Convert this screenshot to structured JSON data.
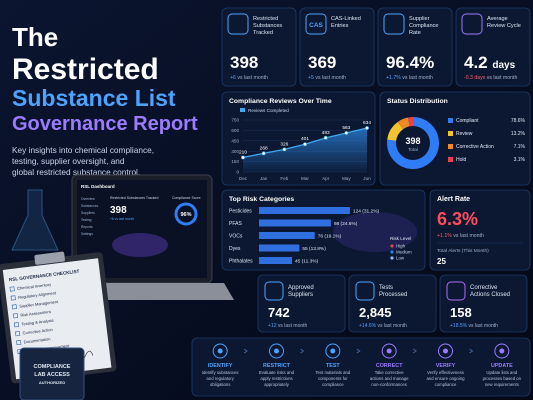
{
  "header": {
    "title_lines": [
      "The",
      "Restricted",
      "Substance List",
      "Governance Report"
    ],
    "title_colors": [
      "#ffffff",
      "#ffffff",
      "#4da3ff",
      "#9b7bff"
    ],
    "subtitle_lines": [
      "Key insights into chemical compliance,",
      "testing, supplier oversight, and",
      "global restricted substance control."
    ]
  },
  "illustration": {
    "laptop": {
      "title": "RSL Dashboard",
      "menu": [
        "Overview",
        "Substances",
        "Suppliers",
        "Testing",
        "Reports",
        "Settings"
      ],
      "kpi_label": "Restricted Substances Tracked",
      "kpi_value": "398",
      "kpi_delta": "+6 vs last month",
      "score_label": "Compliance Score",
      "score_value": "96%"
    },
    "checklist": {
      "title": "RSL GOVERNANCE CHECKLIST",
      "items": [
        "Chemical Inventory",
        "Regulatory Alignment",
        "Supplier Management",
        "Risk Assessment",
        "Testing & Analysis",
        "Corrective Action",
        "Documentation",
        "Continuous Improvement"
      ]
    },
    "badge": {
      "lines": [
        "COMPLIANCE",
        "LAB ACCESS",
        "AUTHORIZED"
      ]
    }
  },
  "kpis": [
    {
      "label_lines": [
        "Restricted",
        "Substances",
        "Tracked"
      ],
      "value": "398",
      "delta": "+6",
      "delta_note": "vs last month",
      "delta_color": "#4da3ff",
      "icon_color": "#4da3ff"
    },
    {
      "icon_text": "CAS",
      "label_lines": [
        "CAS-Linked",
        "Entries"
      ],
      "value": "369",
      "delta": "+5",
      "delta_note": "vs last month",
      "delta_color": "#4da3ff",
      "icon_color": "#4da3ff"
    },
    {
      "label_lines": [
        "Supplier",
        "Compliance",
        "Rate"
      ],
      "value": "96.4%",
      "delta": "+1.7%",
      "delta_note": "vs last month",
      "delta_color": "#4da3ff",
      "icon_color": "#4da3ff"
    },
    {
      "label_lines": [
        "Average",
        "Review Cycle"
      ],
      "value": "4.2",
      "unit": "days",
      "delta": "-0.3 days",
      "delta_note": "vs last month",
      "delta_color": "#ff5a6a",
      "icon_color": "#9b7bff"
    }
  ],
  "chart_data": [
    {
      "type": "line",
      "title": "Compliance Reviews Over Time",
      "categories": [
        "Dec",
        "Jan",
        "Feb",
        "Mar",
        "Apr",
        "May",
        "Jun"
      ],
      "series": [
        {
          "name": "Reviews Completed",
          "color": "#3fa9f5",
          "values": [
            210,
            268,
            326,
            401,
            493,
            563,
            634
          ]
        }
      ],
      "ylim": [
        0,
        750
      ],
      "yticks": [
        0,
        150,
        300,
        450,
        600,
        750
      ],
      "grid": true,
      "area": true
    },
    {
      "type": "pie",
      "title": "Status Distribution",
      "center_value": "398",
      "center_label": "Total",
      "categories": [
        "Compliant",
        "Review",
        "Corrective Action",
        "Hold"
      ],
      "values": [
        78.6,
        13.2,
        7.1,
        3.1
      ],
      "value_labels": [
        "78.6%",
        "13.2%",
        "7.1%",
        "3.1%"
      ],
      "colors": [
        "#2f7df6",
        "#f4c430",
        "#f08a24",
        "#e8414d"
      ]
    },
    {
      "type": "bar",
      "orientation": "horizontal",
      "title": "Top Risk Categories",
      "categories": [
        "Pesticides",
        "PFAS",
        "VOCs",
        "Dyes",
        "Phthalates"
      ],
      "values": [
        124,
        98,
        76,
        55,
        45
      ],
      "value_labels": [
        "124 (31.2%)",
        "98 (24.6%)",
        "76 (19.1%)",
        "55 (13.8%)",
        "45 (11.3%)"
      ],
      "color": "#2f6fe0",
      "xlim": [
        0,
        150
      ],
      "legend": {
        "title": "Risk Level",
        "items": [
          "High",
          "Medium",
          "Low"
        ],
        "colors": [
          "#e8414d",
          "#2f7df6",
          "#8fb8ff"
        ]
      }
    }
  ],
  "alert": {
    "title": "Alert Rate",
    "value": "6.3%",
    "delta": "+1.1%",
    "delta_note": "vs last month",
    "total_label": "Total Alerts (This Month)",
    "total": "25"
  },
  "bottom_kpis": [
    {
      "label_lines": [
        "Approved",
        "Suppliers"
      ],
      "value": "742",
      "delta": "+12",
      "delta_note": "vs last month",
      "icon_color": "#4da3ff"
    },
    {
      "label_lines": [
        "Tests",
        "Processed"
      ],
      "value": "2,845",
      "delta": "+14.6%",
      "delta_note": "vs last month",
      "icon_color": "#4da3ff"
    },
    {
      "label_lines": [
        "Corrective",
        "Actions Closed"
      ],
      "value": "158",
      "delta": "+18.5%",
      "delta_note": "vs last month",
      "icon_color": "#b06bff"
    }
  ],
  "process": [
    {
      "title": "IDENTIFY",
      "desc_lines": [
        "Identify substances",
        "and regulatory",
        "obligations"
      ],
      "color": "#4da3ff"
    },
    {
      "title": "RESTRICT",
      "desc_lines": [
        "Evaluate risks and",
        "apply restrictions",
        "appropriately"
      ],
      "color": "#4da3ff"
    },
    {
      "title": "TEST",
      "desc_lines": [
        "Test materials and",
        "components for",
        "compliance"
      ],
      "color": "#4da3ff"
    },
    {
      "title": "CORRECT",
      "desc_lines": [
        "Take corrective",
        "actions and manage",
        "non-conformances"
      ],
      "color": "#9b7bff"
    },
    {
      "title": "VERIFY",
      "desc_lines": [
        "Verify effectiveness",
        "and ensure ongoing",
        "compliance"
      ],
      "color": "#9b7bff"
    },
    {
      "title": "UPDATE",
      "desc_lines": [
        "Update lists and",
        "processes based on",
        "new requirements"
      ],
      "color": "#9b7bff"
    }
  ]
}
